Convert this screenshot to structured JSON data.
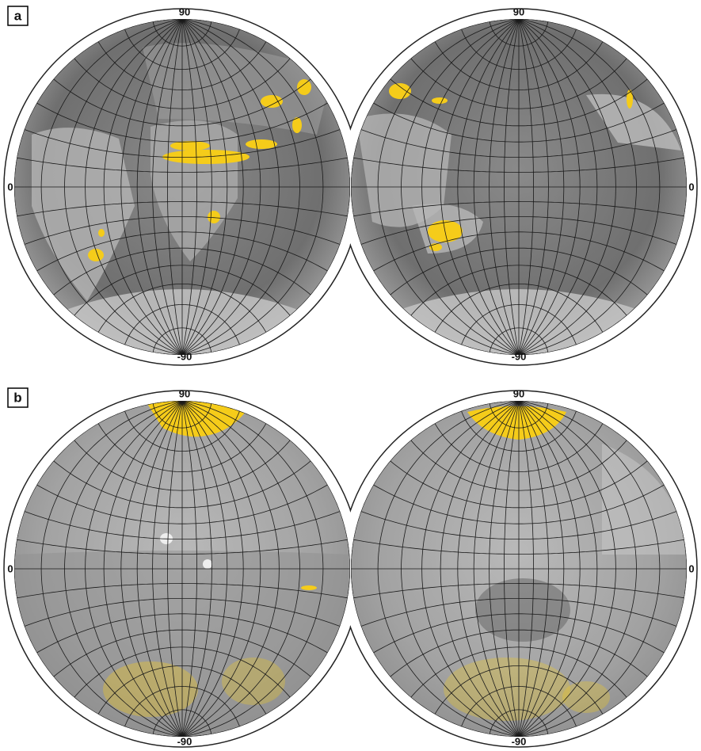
{
  "panels": [
    {
      "label": "a",
      "globes": [
        {
          "north": "90",
          "south": "-90",
          "edge": "0"
        },
        {
          "north": "90",
          "south": "-90",
          "edge": "0"
        }
      ]
    },
    {
      "label": "b",
      "globes": [
        {
          "north": "90",
          "south": "-90",
          "edge": "0"
        },
        {
          "north": "90",
          "south": "-90",
          "edge": "0"
        }
      ]
    }
  ]
}
